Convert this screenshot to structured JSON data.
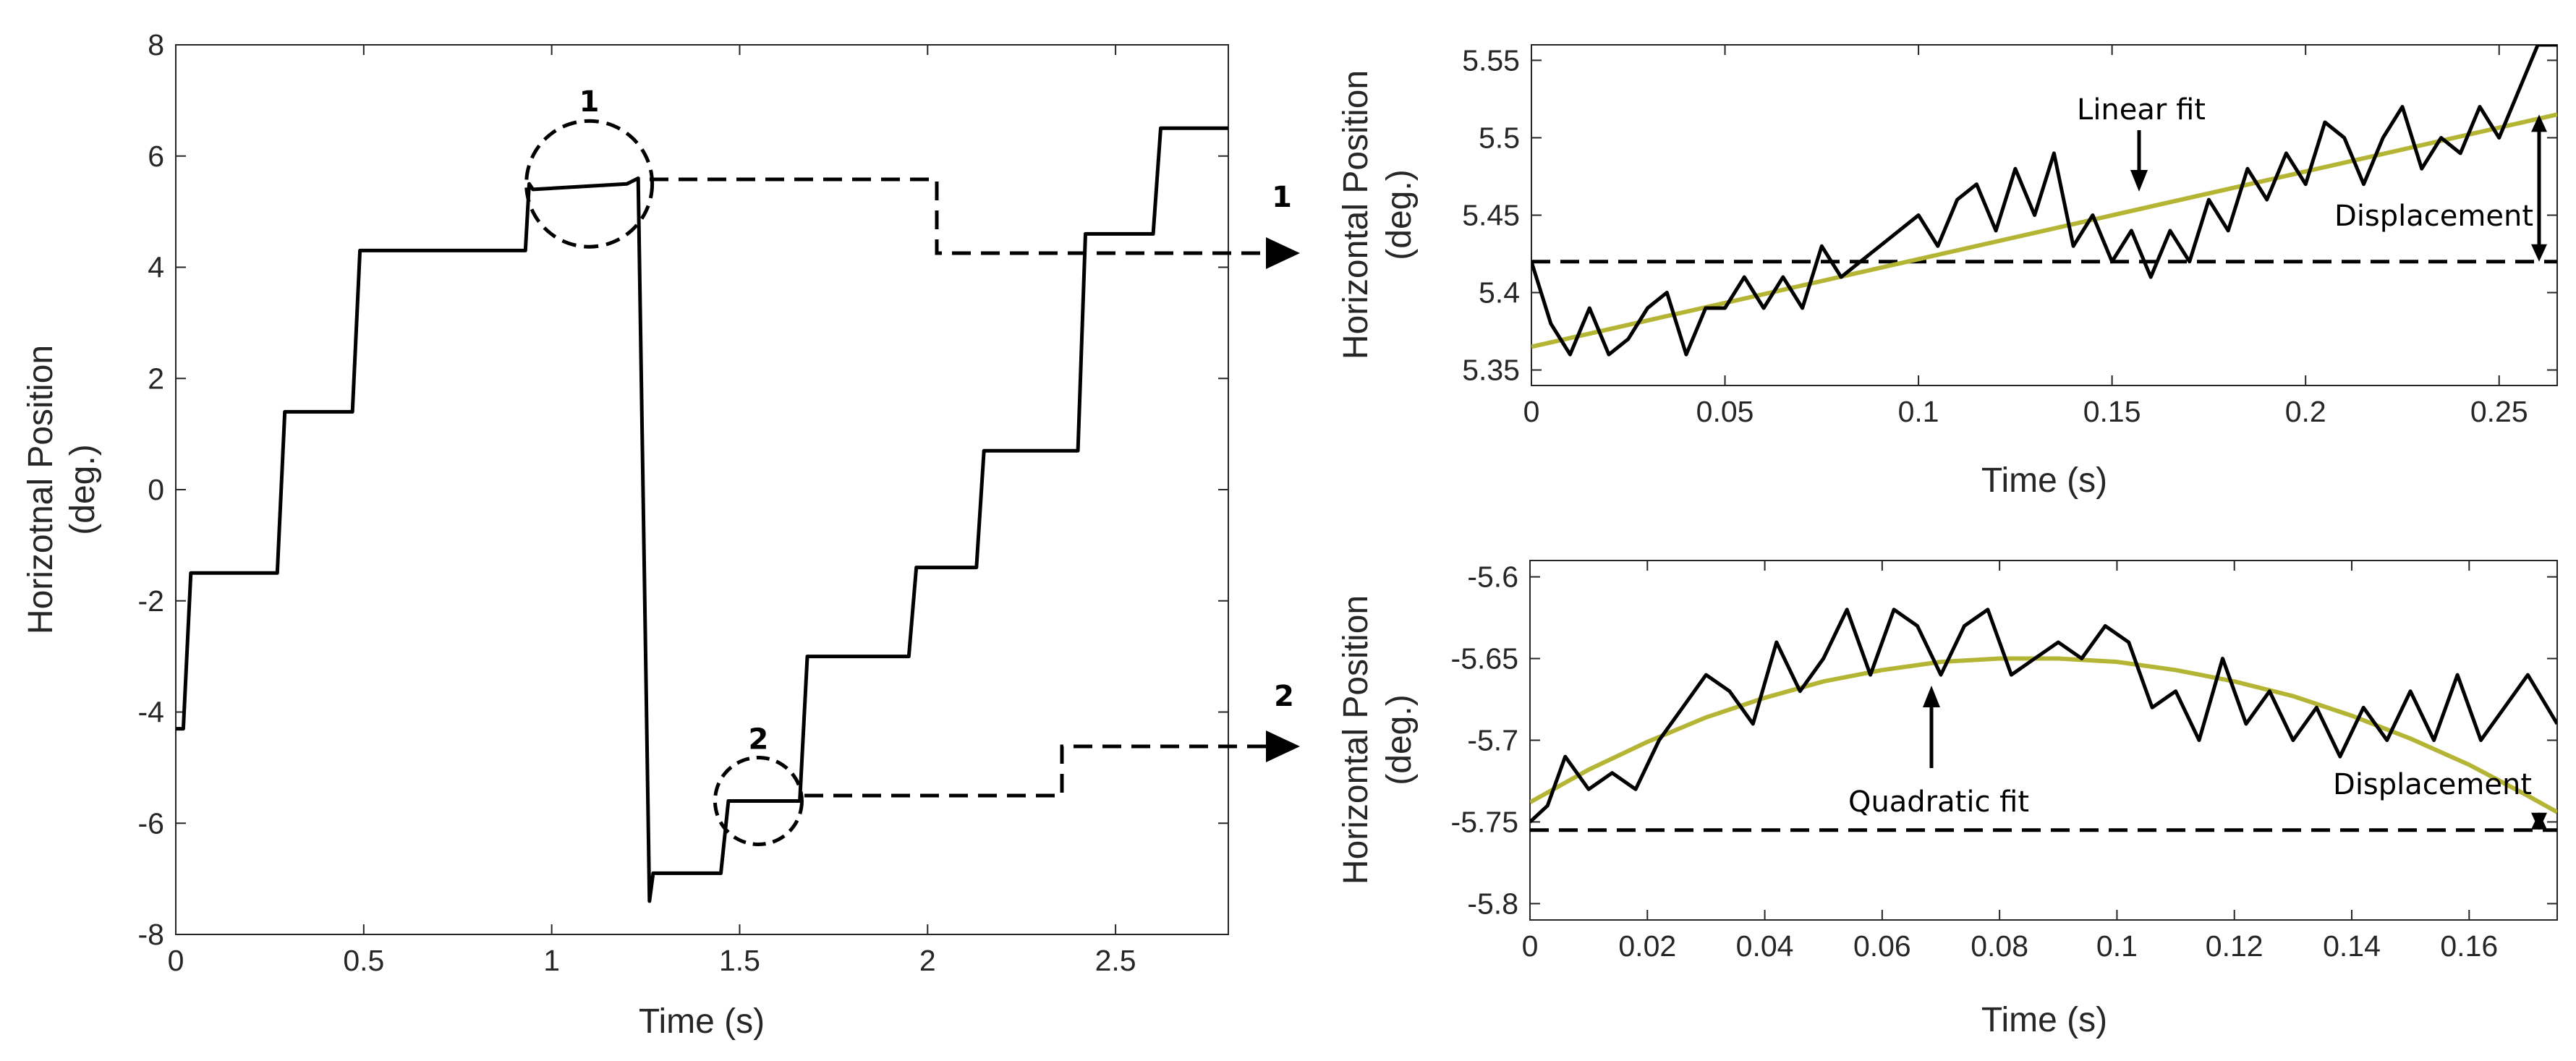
{
  "colors": {
    "trace": "#000000",
    "fit": "#b5b535",
    "axis": "#262626"
  },
  "chart_data": [
    {
      "type": "line",
      "xlabel": "Time (s)",
      "ylabel": "Horizotnal Position (deg.)",
      "ylabel_lines": [
        "Horizotnal Position",
        "(deg.)"
      ],
      "xlim": [
        0,
        2.8
      ],
      "ylim": [
        -8,
        8
      ],
      "xticks": [
        0,
        0.5,
        1,
        1.5,
        2,
        2.5
      ],
      "xtick_labels": [
        "0",
        "0.5",
        "1",
        "1.5",
        "2",
        "2.5"
      ],
      "yticks": [
        -8,
        -6,
        -4,
        -2,
        0,
        2,
        4,
        6,
        8
      ],
      "ytick_labels": [
        "-8",
        "-6",
        "-4",
        "-2",
        "0",
        "2",
        "4",
        "6",
        "8"
      ],
      "grid": false,
      "series": [
        {
          "style": "solid-black",
          "x": [
            0,
            0.02,
            0.04,
            0.27,
            0.29,
            0.47,
            0.49,
            0.93,
            0.94,
            0.95,
            1.2,
            1.23,
            1.26,
            1.27,
            1.3,
            1.45,
            1.47,
            1.66,
            1.68,
            1.95,
            1.97,
            2.13,
            2.15,
            2.4,
            2.42,
            2.6,
            2.62,
            2.8
          ],
          "y": [
            -4.3,
            -4.3,
            -1.5,
            -1.5,
            1.4,
            1.4,
            4.3,
            4.3,
            5.5,
            5.4,
            5.5,
            5.6,
            -7.4,
            -6.9,
            -6.9,
            -6.9,
            -5.6,
            -5.6,
            -3.0,
            -3.0,
            -1.4,
            -1.4,
            0.7,
            0.7,
            4.6,
            4.6,
            6.5,
            6.5
          ]
        }
      ],
      "annotations": [
        {
          "label": "1",
          "circle_center": [
            1.1,
            5.5
          ]
        },
        {
          "label": "2",
          "circle_center": [
            1.55,
            -5.6
          ]
        }
      ]
    },
    {
      "type": "line",
      "xlabel": "Time (s)",
      "ylabel": "Horizontal Position (deg.)",
      "ylabel_lines": [
        "Horizontal Position",
        "(deg.)"
      ],
      "xlim": [
        0,
        0.265
      ],
      "ylim": [
        5.34,
        5.56
      ],
      "xticks": [
        0,
        0.05,
        0.1,
        0.15,
        0.2,
        0.25
      ],
      "xtick_labels": [
        "0",
        "0.05",
        "0.1",
        "0.15",
        "0.2",
        "0.25"
      ],
      "yticks": [
        5.35,
        5.4,
        5.45,
        5.5,
        5.55
      ],
      "ytick_labels": [
        "5.35",
        "5.4",
        "5.45",
        "5.5",
        "5.55"
      ],
      "grid": false,
      "series": [
        {
          "style": "solid-black",
          "x": [
            0,
            0.005,
            0.01,
            0.015,
            0.02,
            0.025,
            0.03,
            0.035,
            0.04,
            0.045,
            0.05,
            0.055,
            0.06,
            0.065,
            0.07,
            0.075,
            0.08,
            0.085,
            0.09,
            0.095,
            0.1,
            0.105,
            0.11,
            0.115,
            0.12,
            0.125,
            0.13,
            0.135,
            0.14,
            0.145,
            0.15,
            0.155,
            0.16,
            0.165,
            0.17,
            0.175,
            0.18,
            0.185,
            0.19,
            0.195,
            0.2,
            0.205,
            0.21,
            0.215,
            0.22,
            0.225,
            0.23,
            0.235,
            0.24,
            0.245,
            0.25,
            0.255,
            0.26,
            0.265
          ],
          "y": [
            5.42,
            5.38,
            5.36,
            5.39,
            5.36,
            5.37,
            5.39,
            5.4,
            5.36,
            5.39,
            5.39,
            5.41,
            5.39,
            5.41,
            5.39,
            5.43,
            5.41,
            5.42,
            5.43,
            5.44,
            5.45,
            5.43,
            5.46,
            5.47,
            5.44,
            5.48,
            5.45,
            5.49,
            5.43,
            5.45,
            5.42,
            5.44,
            5.41,
            5.44,
            5.42,
            5.46,
            5.44,
            5.48,
            5.46,
            5.49,
            5.47,
            5.51,
            5.5,
            5.47,
            5.5,
            5.52,
            5.48,
            5.5,
            5.49,
            5.52,
            5.5,
            5.53,
            5.56,
            5.56
          ]
        },
        {
          "style": "fit",
          "name": "Linear fit",
          "x": [
            0,
            0.265
          ],
          "y": [
            5.365,
            5.515
          ]
        },
        {
          "style": "dashed-black",
          "x": [
            0,
            0.265
          ],
          "y": [
            5.42,
            5.42
          ]
        }
      ],
      "annotations": [
        {
          "text": "Linear fit",
          "arrow": "down"
        },
        {
          "text": "Displacement",
          "arrow": "double-vertical"
        },
        {
          "label": "1"
        }
      ]
    },
    {
      "type": "line",
      "xlabel": "Time (s)",
      "ylabel": "Horizontal Position (deg.)",
      "ylabel_lines": [
        "Horizontal Position",
        "(deg.)"
      ],
      "xlim": [
        0,
        0.175
      ],
      "ylim": [
        -5.81,
        -5.59
      ],
      "xticks": [
        0,
        0.02,
        0.04,
        0.06,
        0.08,
        0.1,
        0.12,
        0.14,
        0.16
      ],
      "xtick_labels": [
        "0",
        "0.02",
        "0.04",
        "0.06",
        "0.08",
        "0.1",
        "0.12",
        "0.14",
        "0.16"
      ],
      "yticks": [
        -5.8,
        -5.75,
        -5.7,
        -5.65,
        -5.6
      ],
      "ytick_labels": [
        "-5.8",
        "-5.75",
        "-5.7",
        "-5.65",
        "-5.6"
      ],
      "grid": false,
      "series": [
        {
          "style": "solid-black",
          "x": [
            0,
            0.003,
            0.006,
            0.01,
            0.014,
            0.018,
            0.022,
            0.026,
            0.03,
            0.034,
            0.038,
            0.042,
            0.046,
            0.05,
            0.054,
            0.058,
            0.062,
            0.066,
            0.07,
            0.074,
            0.078,
            0.082,
            0.086,
            0.09,
            0.094,
            0.098,
            0.102,
            0.106,
            0.11,
            0.114,
            0.118,
            0.122,
            0.126,
            0.13,
            0.134,
            0.138,
            0.142,
            0.146,
            0.15,
            0.154,
            0.158,
            0.162,
            0.166,
            0.17,
            0.175
          ],
          "y": [
            -5.75,
            -5.74,
            -5.71,
            -5.73,
            -5.72,
            -5.73,
            -5.7,
            -5.68,
            -5.66,
            -5.67,
            -5.69,
            -5.64,
            -5.67,
            -5.65,
            -5.62,
            -5.66,
            -5.62,
            -5.63,
            -5.66,
            -5.63,
            -5.62,
            -5.66,
            -5.65,
            -5.64,
            -5.65,
            -5.63,
            -5.64,
            -5.68,
            -5.67,
            -5.7,
            -5.65,
            -5.69,
            -5.67,
            -5.7,
            -5.68,
            -5.71,
            -5.68,
            -5.7,
            -5.67,
            -5.7,
            -5.66,
            -5.7,
            -5.68,
            -5.66,
            -5.69
          ]
        },
        {
          "style": "fit",
          "name": "Quadratic fit",
          "x": [
            0,
            0.01,
            0.02,
            0.03,
            0.04,
            0.05,
            0.06,
            0.07,
            0.08,
            0.09,
            0.1,
            0.11,
            0.12,
            0.13,
            0.14,
            0.15,
            0.16,
            0.17,
            0.175
          ],
          "y": [
            -5.738,
            -5.718,
            -5.701,
            -5.686,
            -5.674,
            -5.664,
            -5.657,
            -5.652,
            -5.65,
            -5.65,
            -5.652,
            -5.657,
            -5.664,
            -5.673,
            -5.685,
            -5.699,
            -5.715,
            -5.734,
            -5.744
          ]
        },
        {
          "style": "dashed-black",
          "x": [
            0,
            0.175
          ],
          "y": [
            -5.755,
            -5.755
          ]
        }
      ],
      "annotations": [
        {
          "text": "Quadratic fit",
          "arrow": "up"
        },
        {
          "text": "Displacement",
          "arrow": "double-vertical"
        },
        {
          "label": "2"
        }
      ]
    }
  ]
}
